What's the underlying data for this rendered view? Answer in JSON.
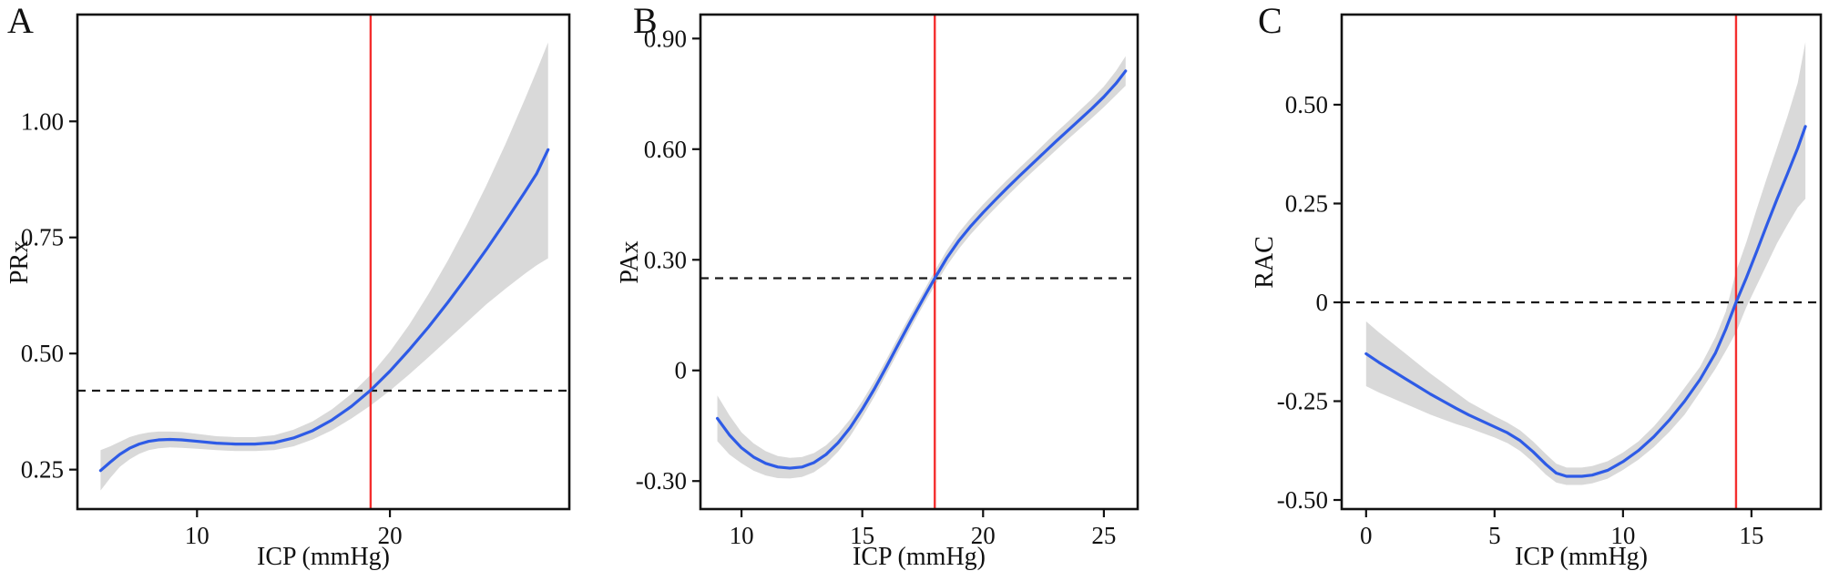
{
  "figure": {
    "background": "#FFFFFF"
  },
  "chart_data": [
    {
      "type": "line",
      "panel_label": "A",
      "xlabel": "ICP (mmHg)",
      "ylabel": "PRx",
      "x_range": [
        3.8,
        29.3
      ],
      "y_range": [
        0.165,
        1.23
      ],
      "grid": "off",
      "legend": "none",
      "x_ticks": {
        "values": [
          10,
          20
        ],
        "labels": [
          "10",
          "20"
        ]
      },
      "y_ticks": {
        "values": [
          0.25,
          0.5,
          0.75,
          1.0
        ],
        "labels": [
          "0.25",
          "0.50",
          "0.75",
          "1.00"
        ]
      },
      "vline": {
        "x": 19,
        "color": "#F42E2E",
        "meaning": "ICP threshold"
      },
      "hline": {
        "y": 0.42,
        "style": "dashed",
        "color": "#1A1A1A",
        "meaning": "PRx threshold"
      },
      "series": [
        {
          "name": "smoothed PRx vs ICP",
          "color": "#2E5BE6",
          "points": [
            [
              5.0,
              0.248
            ],
            [
              5.5,
              0.266
            ],
            [
              6.0,
              0.283
            ],
            [
              6.5,
              0.296
            ],
            [
              7.0,
              0.305
            ],
            [
              7.5,
              0.311
            ],
            [
              8.0,
              0.314
            ],
            [
              8.6,
              0.315
            ],
            [
              9.2,
              0.314
            ],
            [
              10.0,
              0.311
            ],
            [
              11.0,
              0.307
            ],
            [
              12.0,
              0.305
            ],
            [
              13.0,
              0.305
            ],
            [
              14.0,
              0.308
            ],
            [
              15.0,
              0.318
            ],
            [
              16.0,
              0.334
            ],
            [
              17.0,
              0.357
            ],
            [
              18.0,
              0.386
            ],
            [
              19.0,
              0.421
            ],
            [
              20.0,
              0.462
            ],
            [
              21.0,
              0.508
            ],
            [
              22.0,
              0.557
            ],
            [
              23.0,
              0.61
            ],
            [
              24.0,
              0.666
            ],
            [
              25.0,
              0.724
            ],
            [
              26.0,
              0.785
            ],
            [
              27.0,
              0.848
            ],
            [
              27.6,
              0.887
            ],
            [
              28.2,
              0.939
            ]
          ]
        }
      ],
      "band": {
        "name": "95% confidence band",
        "color": "#D9D9D9",
        "points": [
          [
            5.0,
            0.205,
            0.292
          ],
          [
            5.5,
            0.232,
            0.3
          ],
          [
            6.0,
            0.256,
            0.31
          ],
          [
            6.5,
            0.272,
            0.32
          ],
          [
            7.0,
            0.284,
            0.326
          ],
          [
            7.5,
            0.292,
            0.33
          ],
          [
            8.0,
            0.296,
            0.332
          ],
          [
            8.6,
            0.298,
            0.332
          ],
          [
            9.2,
            0.297,
            0.331
          ],
          [
            10.0,
            0.295,
            0.327
          ],
          [
            11.0,
            0.292,
            0.322
          ],
          [
            12.0,
            0.29,
            0.32
          ],
          [
            13.0,
            0.29,
            0.32
          ],
          [
            14.0,
            0.292,
            0.324
          ],
          [
            15.0,
            0.3,
            0.336
          ],
          [
            16.0,
            0.315,
            0.354
          ],
          [
            17.0,
            0.335,
            0.38
          ],
          [
            18.0,
            0.36,
            0.413
          ],
          [
            19.0,
            0.388,
            0.454
          ],
          [
            20.0,
            0.42,
            0.504
          ],
          [
            21.0,
            0.455,
            0.562
          ],
          [
            22.0,
            0.492,
            0.628
          ],
          [
            23.0,
            0.53,
            0.7
          ],
          [
            24.0,
            0.568,
            0.778
          ],
          [
            25.0,
            0.606,
            0.862
          ],
          [
            26.0,
            0.64,
            0.952
          ],
          [
            27.0,
            0.672,
            1.048
          ],
          [
            27.6,
            0.69,
            1.108
          ],
          [
            28.2,
            0.705,
            1.17
          ]
        ]
      }
    },
    {
      "type": "line",
      "panel_label": "B",
      "xlabel": "ICP (mmHg)",
      "ylabel": "PAx",
      "x_range": [
        8.3,
        26.4
      ],
      "y_range": [
        -0.376,
        0.965
      ],
      "grid": "off",
      "legend": "none",
      "x_ticks": {
        "values": [
          10,
          15,
          20,
          25
        ],
        "labels": [
          "10",
          "15",
          "20",
          "25"
        ]
      },
      "y_ticks": {
        "values": [
          -0.3,
          0,
          0.3,
          0.6,
          0.9
        ],
        "labels": [
          "-0.30",
          "0",
          "0.30",
          "0.60",
          "0.90"
        ]
      },
      "vline": {
        "x": 18,
        "color": "#F42E2E",
        "meaning": "ICP threshold"
      },
      "hline": {
        "y": 0.25,
        "style": "dashed",
        "color": "#1A1A1A",
        "meaning": "PAx threshold"
      },
      "series": [
        {
          "name": "smoothed PAx vs ICP",
          "color": "#2E5BE6",
          "points": [
            [
              9.0,
              -0.13
            ],
            [
              9.5,
              -0.175
            ],
            [
              10.0,
              -0.21
            ],
            [
              10.5,
              -0.235
            ],
            [
              11.0,
              -0.252
            ],
            [
              11.5,
              -0.262
            ],
            [
              12.0,
              -0.265
            ],
            [
              12.5,
              -0.262
            ],
            [
              13.0,
              -0.25
            ],
            [
              13.5,
              -0.228
            ],
            [
              14.0,
              -0.196
            ],
            [
              14.5,
              -0.155
            ],
            [
              15.0,
              -0.105
            ],
            [
              15.5,
              -0.05
            ],
            [
              16.0,
              0.01
            ],
            [
              16.5,
              0.072
            ],
            [
              17.0,
              0.133
            ],
            [
              17.5,
              0.192
            ],
            [
              18.0,
              0.25
            ],
            [
              18.5,
              0.305
            ],
            [
              19.0,
              0.352
            ],
            [
              19.5,
              0.392
            ],
            [
              20.0,
              0.428
            ],
            [
              20.5,
              0.462
            ],
            [
              21.0,
              0.495
            ],
            [
              21.5,
              0.527
            ],
            [
              22.0,
              0.558
            ],
            [
              22.5,
              0.589
            ],
            [
              23.0,
              0.62
            ],
            [
              23.5,
              0.65
            ],
            [
              24.0,
              0.68
            ],
            [
              24.5,
              0.71
            ],
            [
              25.0,
              0.742
            ],
            [
              25.5,
              0.778
            ],
            [
              25.9,
              0.812
            ]
          ]
        }
      ],
      "band": {
        "name": "95% confidence band",
        "color": "#D9D9D9",
        "points": [
          [
            9.0,
            -0.192,
            -0.068
          ],
          [
            9.5,
            -0.228,
            -0.122
          ],
          [
            10.0,
            -0.252,
            -0.168
          ],
          [
            10.5,
            -0.272,
            -0.198
          ],
          [
            11.0,
            -0.285,
            -0.219
          ],
          [
            11.5,
            -0.292,
            -0.232
          ],
          [
            12.0,
            -0.293,
            -0.237
          ],
          [
            12.5,
            -0.289,
            -0.235
          ],
          [
            13.0,
            -0.276,
            -0.224
          ],
          [
            13.5,
            -0.253,
            -0.203
          ],
          [
            14.0,
            -0.22,
            -0.172
          ],
          [
            14.5,
            -0.178,
            -0.132
          ],
          [
            15.0,
            -0.127,
            -0.083
          ],
          [
            15.5,
            -0.071,
            -0.029
          ],
          [
            16.0,
            -0.01,
            0.03
          ],
          [
            16.5,
            0.052,
            0.092
          ],
          [
            17.0,
            0.114,
            0.152
          ],
          [
            17.5,
            0.174,
            0.21
          ],
          [
            18.0,
            0.23,
            0.27
          ],
          [
            18.5,
            0.284,
            0.326
          ],
          [
            19.0,
            0.33,
            0.374
          ],
          [
            19.5,
            0.37,
            0.414
          ],
          [
            20.0,
            0.406,
            0.45
          ],
          [
            20.5,
            0.44,
            0.484
          ],
          [
            21.0,
            0.473,
            0.517
          ],
          [
            21.5,
            0.505,
            0.549
          ],
          [
            22.0,
            0.536,
            0.58
          ],
          [
            22.5,
            0.566,
            0.612
          ],
          [
            23.0,
            0.596,
            0.644
          ],
          [
            23.5,
            0.626,
            0.674
          ],
          [
            24.0,
            0.655,
            0.705
          ],
          [
            24.5,
            0.684,
            0.736
          ],
          [
            25.0,
            0.714,
            0.77
          ],
          [
            25.5,
            0.746,
            0.812
          ],
          [
            25.9,
            0.772,
            0.852
          ]
        ]
      }
    },
    {
      "type": "line",
      "panel_label": "C",
      "xlabel": "ICP (mmHg)",
      "ylabel": "RAC",
      "x_range": [
        -0.95,
        17.7
      ],
      "y_range": [
        -0.523,
        0.728
      ],
      "grid": "off",
      "legend": "none",
      "x_ticks": {
        "values": [
          0,
          5,
          10,
          15
        ],
        "labels": [
          "0",
          "5",
          "10",
          "15"
        ]
      },
      "y_ticks": {
        "values": [
          -0.5,
          -0.25,
          0,
          0.25,
          0.5
        ],
        "labels": [
          "-0.50",
          "-0.25",
          "0",
          "0.25",
          "0.50"
        ]
      },
      "vline": {
        "x": 14.4,
        "color": "#F42E2E",
        "meaning": "ICP threshold"
      },
      "hline": {
        "y": 0,
        "style": "dashed",
        "color": "#1A1A1A",
        "meaning": "RAC threshold"
      },
      "series": [
        {
          "name": "smoothed RAC vs ICP",
          "color": "#2E5BE6",
          "points": [
            [
              0.0,
              -0.13
            ],
            [
              0.5,
              -0.152
            ],
            [
              1.0,
              -0.172
            ],
            [
              1.5,
              -0.192
            ],
            [
              2.0,
              -0.212
            ],
            [
              2.5,
              -0.232
            ],
            [
              3.0,
              -0.25
            ],
            [
              3.5,
              -0.268
            ],
            [
              4.0,
              -0.285
            ],
            [
              4.5,
              -0.3
            ],
            [
              5.0,
              -0.315
            ],
            [
              5.5,
              -0.33
            ],
            [
              6.0,
              -0.35
            ],
            [
              6.5,
              -0.378
            ],
            [
              7.0,
              -0.41
            ],
            [
              7.4,
              -0.432
            ],
            [
              7.8,
              -0.44
            ],
            [
              8.4,
              -0.44
            ],
            [
              8.8,
              -0.437
            ],
            [
              9.4,
              -0.425
            ],
            [
              10.0,
              -0.403
            ],
            [
              10.6,
              -0.375
            ],
            [
              11.2,
              -0.34
            ],
            [
              11.8,
              -0.298
            ],
            [
              12.4,
              -0.25
            ],
            [
              13.0,
              -0.195
            ],
            [
              13.6,
              -0.128
            ],
            [
              14.0,
              -0.068
            ],
            [
              14.4,
              0.0
            ],
            [
              14.8,
              0.062
            ],
            [
              15.2,
              0.128
            ],
            [
              15.6,
              0.196
            ],
            [
              16.0,
              0.262
            ],
            [
              16.4,
              0.325
            ],
            [
              16.8,
              0.39
            ],
            [
              17.1,
              0.445
            ]
          ]
        }
      ],
      "band": {
        "name": "95% confidence band",
        "color": "#D9D9D9",
        "points": [
          [
            0.0,
            -0.212,
            -0.048
          ],
          [
            0.5,
            -0.228,
            -0.076
          ],
          [
            1.0,
            -0.242,
            -0.102
          ],
          [
            1.5,
            -0.256,
            -0.128
          ],
          [
            2.0,
            -0.27,
            -0.154
          ],
          [
            2.5,
            -0.284,
            -0.18
          ],
          [
            3.0,
            -0.296,
            -0.204
          ],
          [
            3.5,
            -0.308,
            -0.228
          ],
          [
            4.0,
            -0.318,
            -0.252
          ],
          [
            4.5,
            -0.33,
            -0.27
          ],
          [
            5.0,
            -0.342,
            -0.288
          ],
          [
            5.5,
            -0.356,
            -0.304
          ],
          [
            6.0,
            -0.376,
            -0.324
          ],
          [
            6.5,
            -0.404,
            -0.352
          ],
          [
            7.0,
            -0.436,
            -0.384
          ],
          [
            7.4,
            -0.456,
            -0.408
          ],
          [
            7.8,
            -0.462,
            -0.418
          ],
          [
            8.4,
            -0.462,
            -0.418
          ],
          [
            8.8,
            -0.458,
            -0.414
          ],
          [
            9.4,
            -0.446,
            -0.402
          ],
          [
            10.0,
            -0.424,
            -0.38
          ],
          [
            10.6,
            -0.398,
            -0.352
          ],
          [
            11.2,
            -0.366,
            -0.314
          ],
          [
            11.8,
            -0.328,
            -0.268
          ],
          [
            12.4,
            -0.284,
            -0.216
          ],
          [
            13.0,
            -0.227,
            -0.163
          ],
          [
            13.6,
            -0.168,
            -0.088
          ],
          [
            14.0,
            -0.123,
            -0.024
          ],
          [
            14.4,
            -0.076,
            0.078
          ],
          [
            14.8,
            -0.012,
            0.152
          ],
          [
            15.2,
            0.042,
            0.235
          ],
          [
            15.6,
            0.096,
            0.315
          ],
          [
            16.0,
            0.15,
            0.392
          ],
          [
            16.4,
            0.196,
            0.47
          ],
          [
            16.8,
            0.24,
            0.555
          ],
          [
            17.1,
            0.262,
            0.658
          ]
        ]
      }
    }
  ]
}
